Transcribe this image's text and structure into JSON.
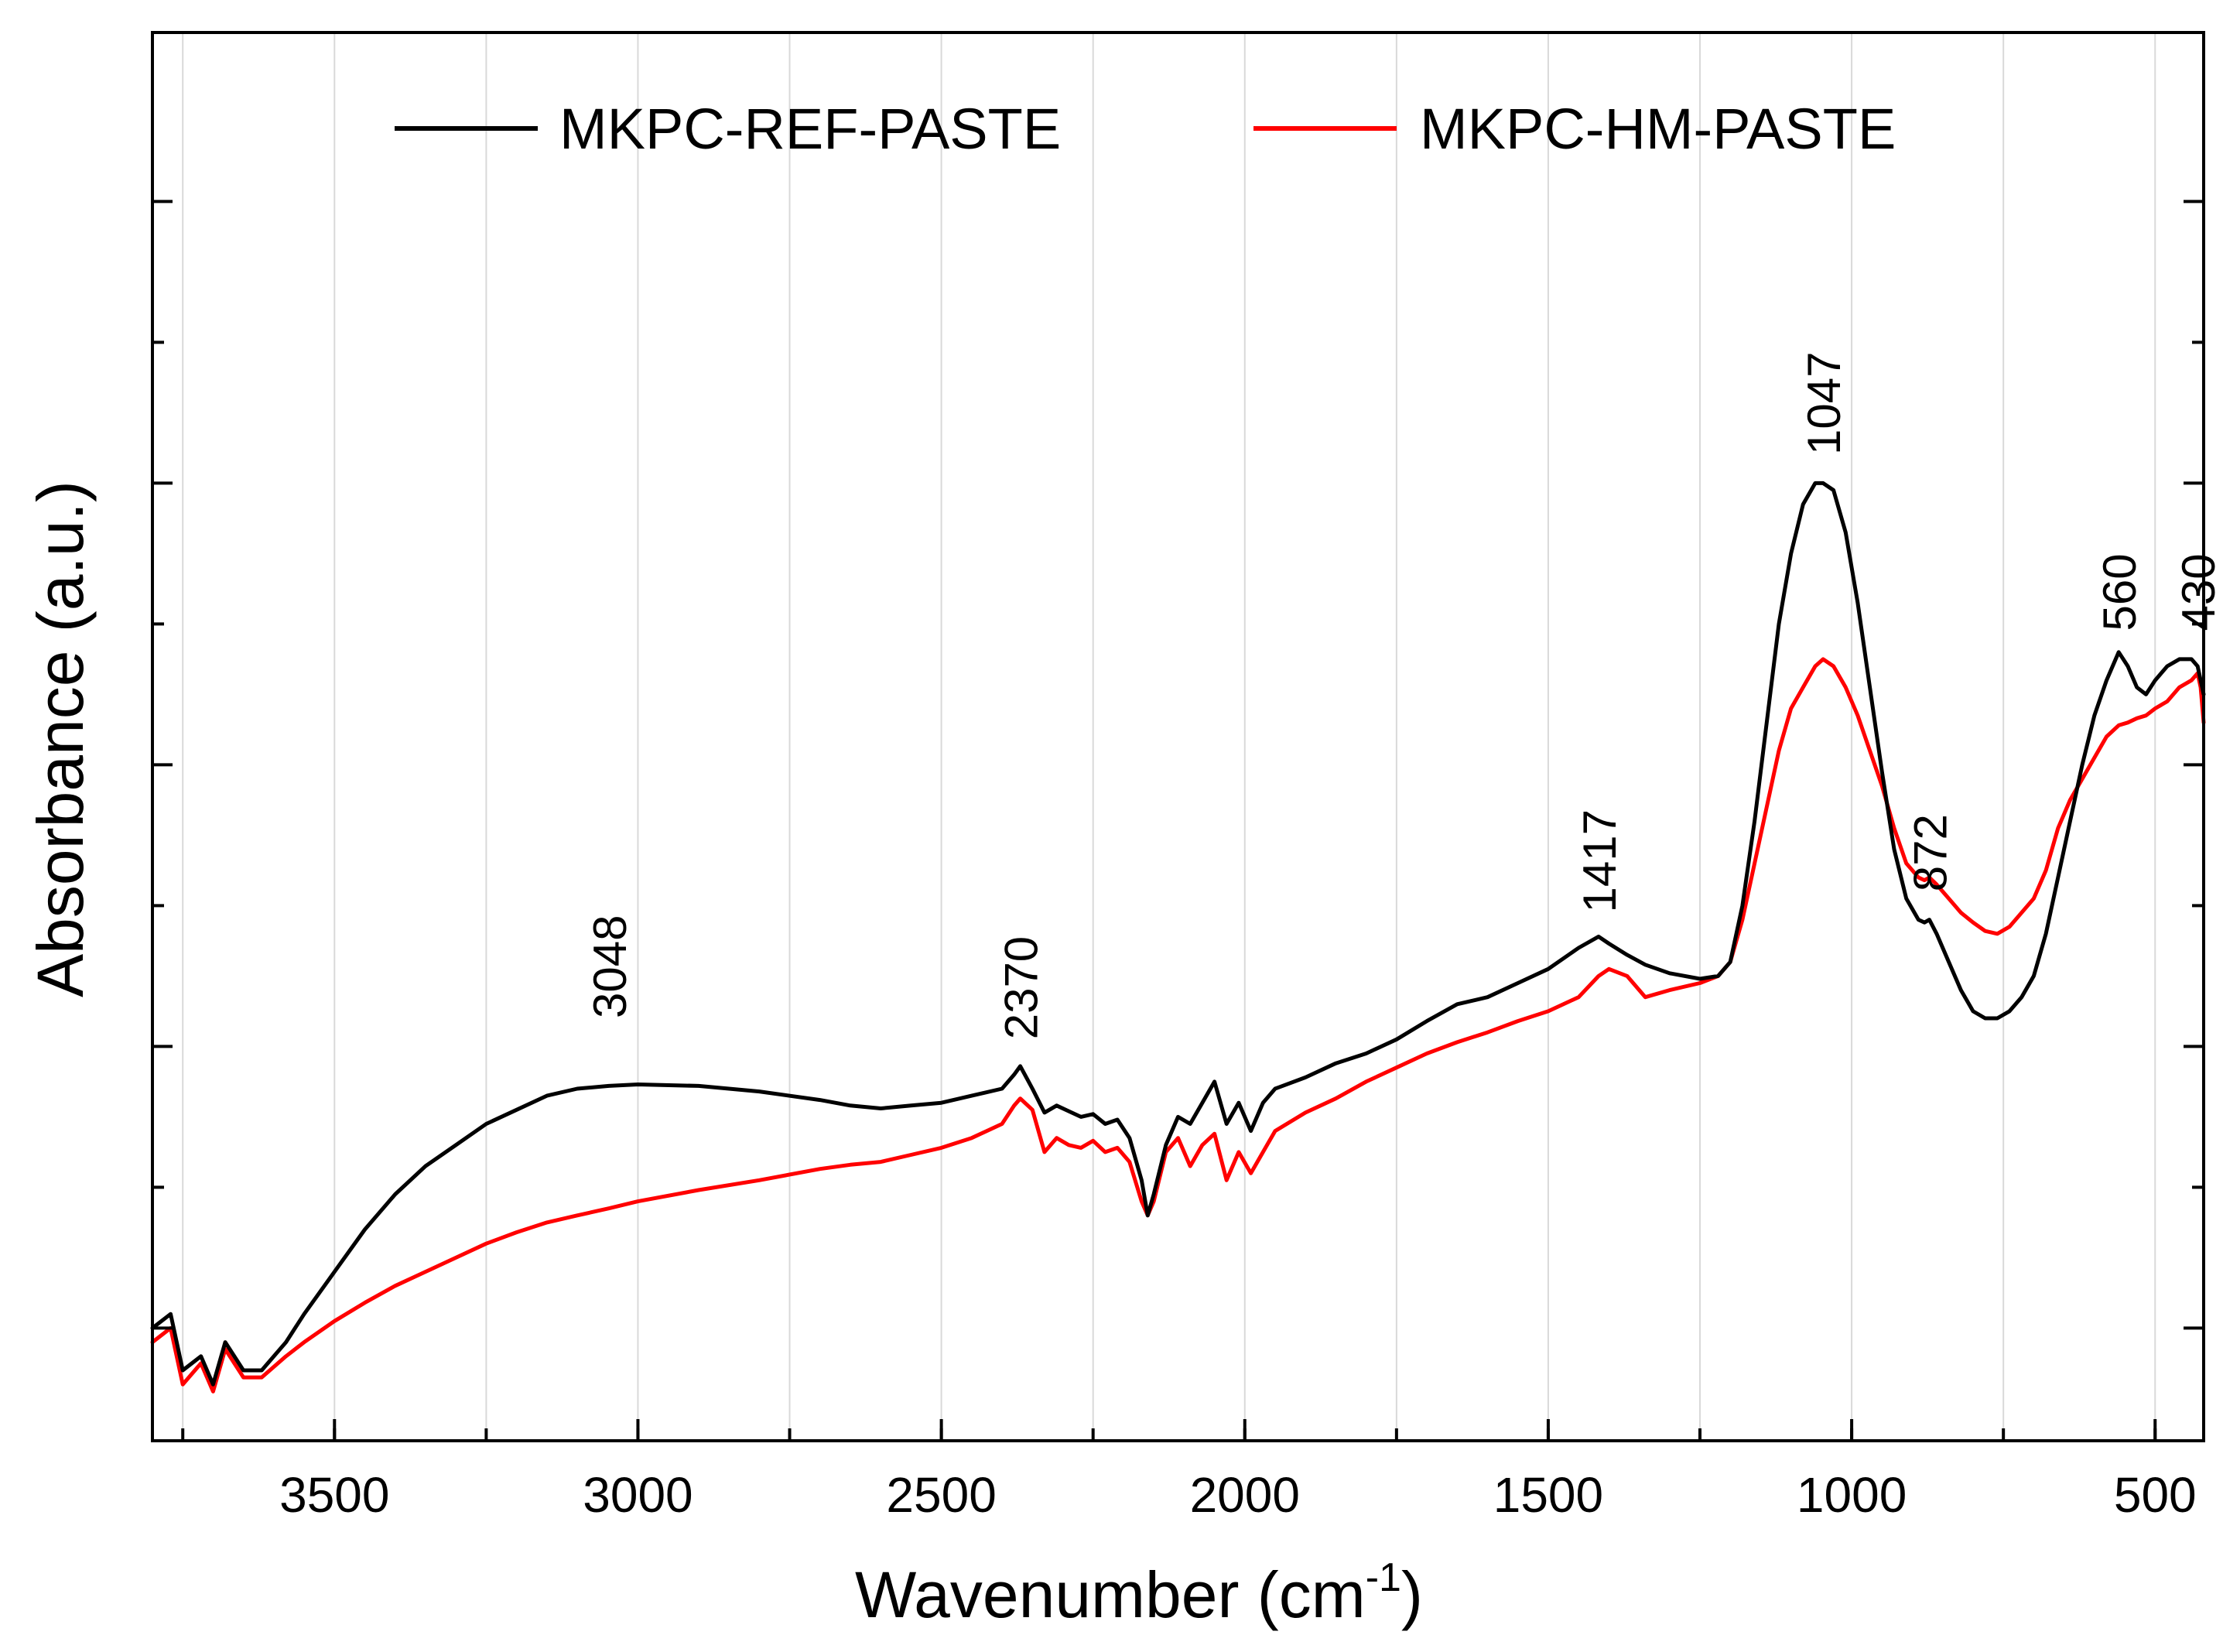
{
  "chart_data": {
    "type": "line",
    "xlabel": "Wavenumber (cm",
    "xlabel_sup": "-1",
    "xlabel_close": ")",
    "ylabel": "Absorbance (a.u.)",
    "xlim": [
      3800,
      420
    ],
    "ylim": [
      0,
      100
    ],
    "x_reversed": true,
    "xticks": [
      3500,
      3000,
      2500,
      2000,
      1500,
      1000,
      500
    ],
    "x_minor_step": 250,
    "yticks_major": [
      8,
      28,
      48,
      68,
      88
    ],
    "yticks_minor": [
      18,
      38,
      58,
      78
    ],
    "grid": "vertical",
    "legend": {
      "position": "top-center",
      "entries": [
        {
          "label": "MKPC-REF-PASTE",
          "color": "#000000"
        },
        {
          "label": "MKPC-HM-PASTE",
          "color": "#ff0000"
        }
      ]
    },
    "series": [
      {
        "name": "MKPC-REF-PASTE",
        "color": "#000000",
        "x": [
          3800,
          3770,
          3750,
          3720,
          3700,
          3680,
          3650,
          3620,
          3580,
          3550,
          3500,
          3450,
          3400,
          3350,
          3300,
          3250,
          3200,
          3150,
          3100,
          3048,
          3000,
          2900,
          2800,
          2700,
          2650,
          2600,
          2550,
          2500,
          2450,
          2400,
          2380,
          2370,
          2350,
          2330,
          2310,
          2290,
          2270,
          2250,
          2230,
          2210,
          2190,
          2170,
          2160,
          2150,
          2130,
          2110,
          2090,
          2070,
          2050,
          2030,
          2010,
          1990,
          1970,
          1950,
          1900,
          1850,
          1800,
          1750,
          1700,
          1650,
          1600,
          1550,
          1500,
          1450,
          1417,
          1400,
          1370,
          1340,
          1300,
          1250,
          1220,
          1200,
          1180,
          1160,
          1140,
          1120,
          1100,
          1080,
          1060,
          1047,
          1030,
          1010,
          990,
          970,
          950,
          930,
          910,
          890,
          880,
          872,
          860,
          840,
          820,
          800,
          780,
          760,
          740,
          720,
          700,
          680,
          660,
          640,
          620,
          600,
          580,
          560,
          545,
          530,
          515,
          500,
          480,
          460,
          440,
          430,
          425,
          420
        ],
        "y": [
          8,
          9,
          5,
          6,
          4,
          7,
          5,
          5,
          7,
          9,
          12,
          15,
          17.5,
          19.5,
          21,
          22.5,
          23.5,
          24.5,
          25,
          25.2,
          25.3,
          25.2,
          24.8,
          24.2,
          23.8,
          23.6,
          23.8,
          24.0,
          24.5,
          25.0,
          26.0,
          26.6,
          25.0,
          23.3,
          23.8,
          23.4,
          23.0,
          23.2,
          22.5,
          22.8,
          21.5,
          18.5,
          16.0,
          17.5,
          21.0,
          23.0,
          22.5,
          24.0,
          25.5,
          22.5,
          24.0,
          22.0,
          24.0,
          25.0,
          25.8,
          26.8,
          27.5,
          28.5,
          29.8,
          31.0,
          31.5,
          32.5,
          33.5,
          35.0,
          35.8,
          35.3,
          34.5,
          33.8,
          33.2,
          32.8,
          33.0,
          34.0,
          38.0,
          44.0,
          51.0,
          58.0,
          63.0,
          66.5,
          68.0,
          68.0,
          67.5,
          64.5,
          59.5,
          53.5,
          47.5,
          42.0,
          38.5,
          37.0,
          36.8,
          37.0,
          36.0,
          34.0,
          32.0,
          30.5,
          30.0,
          30.0,
          30.5,
          31.5,
          33.0,
          36.0,
          40.0,
          44.0,
          48.0,
          51.5,
          54.0,
          56.0,
          55.0,
          53.5,
          53.0,
          54.0,
          55.0,
          55.5,
          55.5,
          55.0,
          54.0,
          53.0
        ]
      },
      {
        "name": "MKPC-HM-PASTE",
        "color": "#ff0000",
        "x": [
          3800,
          3770,
          3750,
          3720,
          3700,
          3680,
          3650,
          3620,
          3580,
          3550,
          3500,
          3450,
          3400,
          3350,
          3300,
          3250,
          3200,
          3150,
          3100,
          3048,
          3000,
          2900,
          2800,
          2700,
          2650,
          2600,
          2550,
          2500,
          2450,
          2400,
          2380,
          2370,
          2350,
          2330,
          2310,
          2290,
          2270,
          2250,
          2230,
          2210,
          2190,
          2170,
          2160,
          2150,
          2130,
          2110,
          2090,
          2070,
          2050,
          2030,
          2010,
          1990,
          1970,
          1950,
          1900,
          1850,
          1800,
          1750,
          1700,
          1650,
          1600,
          1550,
          1500,
          1450,
          1417,
          1400,
          1370,
          1340,
          1300,
          1250,
          1220,
          1200,
          1180,
          1160,
          1140,
          1120,
          1100,
          1080,
          1060,
          1047,
          1030,
          1010,
          990,
          970,
          950,
          930,
          910,
          890,
          880,
          872,
          860,
          840,
          820,
          800,
          780,
          760,
          740,
          720,
          700,
          680,
          660,
          640,
          620,
          600,
          580,
          560,
          545,
          530,
          515,
          500,
          480,
          460,
          440,
          430,
          425,
          420
        ],
        "y": [
          7,
          8,
          4,
          5.5,
          3.5,
          6.5,
          4.5,
          4.5,
          6,
          7,
          8.5,
          9.8,
          11.0,
          12.0,
          13.0,
          14.0,
          14.8,
          15.5,
          16.0,
          16.5,
          17.0,
          17.8,
          18.5,
          19.3,
          19.6,
          19.8,
          20.3,
          20.8,
          21.5,
          22.5,
          23.8,
          24.3,
          23.5,
          20.5,
          21.5,
          21.0,
          20.8,
          21.3,
          20.5,
          20.8,
          19.8,
          17.0,
          16.0,
          17.0,
          20.5,
          21.5,
          19.5,
          21.0,
          21.8,
          18.5,
          20.5,
          19.0,
          20.5,
          22.0,
          23.3,
          24.3,
          25.5,
          26.5,
          27.5,
          28.3,
          29.0,
          29.8,
          30.5,
          31.5,
          33.0,
          33.5,
          33.0,
          31.5,
          32.0,
          32.5,
          33.0,
          34.0,
          37.0,
          41.0,
          45.0,
          49.0,
          52.0,
          53.5,
          55.0,
          55.5,
          55.0,
          53.5,
          51.5,
          49.0,
          46.5,
          43.5,
          41.0,
          40.0,
          39.8,
          40.0,
          39.5,
          38.5,
          37.5,
          36.8,
          36.2,
          36.0,
          36.5,
          37.5,
          38.5,
          40.5,
          43.5,
          45.5,
          47.0,
          48.5,
          50.0,
          50.8,
          51.0,
          51.3,
          51.5,
          52.0,
          52.5,
          53.5,
          54.0,
          54.5,
          53.5,
          51.0
        ]
      }
    ],
    "annotations": [
      {
        "text": "3048",
        "x": 3048,
        "y": 30
      },
      {
        "text": "2370",
        "x": 2370,
        "y": 28.5
      },
      {
        "text": "1417",
        "x": 1417,
        "y": 37.5
      },
      {
        "text": "1047",
        "x": 1047,
        "y": 70
      },
      {
        "text": "872",
        "x": 872,
        "y": 39
      },
      {
        "text": "560",
        "x": 560,
        "y": 57.5
      },
      {
        "text": "430",
        "x": 430,
        "y": 57.5
      }
    ]
  }
}
